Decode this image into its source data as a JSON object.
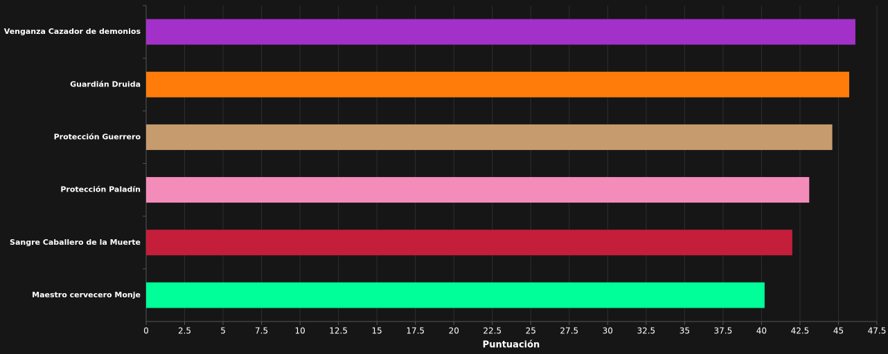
{
  "chart_data": {
    "type": "bar",
    "orientation": "horizontal",
    "categories": [
      "Venganza Cazador de demonios",
      "Guardián Druida",
      "Protección Guerrero",
      "Protección Paladín",
      "Sangre Caballero de la Muerte",
      "Maestro cervecero Monje"
    ],
    "values": [
      46.1,
      45.7,
      44.6,
      43.1,
      42.0,
      40.2
    ],
    "colors": [
      "#a330c9",
      "#ff7c0a",
      "#c69b6d",
      "#f48cba",
      "#c41e3a",
      "#00ff98"
    ],
    "x_label": "Puntuación",
    "xlim": [
      0,
      47.5
    ],
    "xticks": [
      0,
      2.5,
      5,
      7.5,
      10,
      12.5,
      15,
      17.5,
      20,
      22.5,
      25,
      27.5,
      30,
      32.5,
      35,
      37.5,
      40,
      42.5,
      45,
      47.5
    ],
    "grid": true
  }
}
